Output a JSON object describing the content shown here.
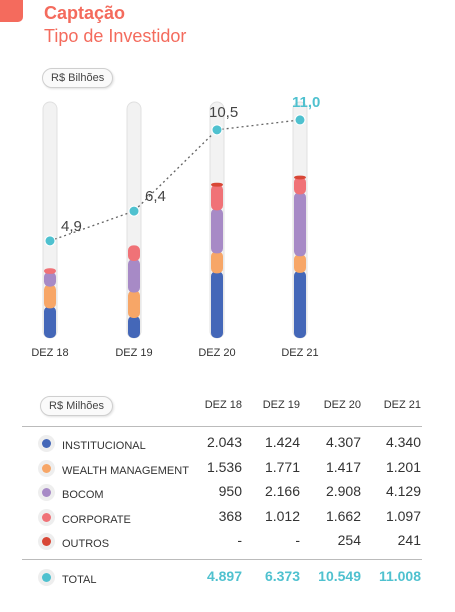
{
  "header": {
    "title": "Captação",
    "subtitle": "Tipo de Investidor"
  },
  "chart_unit_label": "R$ Bilhões",
  "table_unit_label": "R$ Milhões",
  "colors": {
    "institucional": "#4467b8",
    "wealth": "#f7a667",
    "bocom": "#a78ac6",
    "corporate": "#f07277",
    "outros": "#d84736",
    "total": "#4fc1cf",
    "title": "#f46b5d"
  },
  "chart_data": {
    "type": "bar",
    "stacked": true,
    "categories": [
      "DEZ 18",
      "DEZ 19",
      "DEZ 20",
      "DEZ 21"
    ],
    "unit": "R$ Bilhões",
    "series": [
      {
        "name": "INSTITUCIONAL",
        "values": [
          2.043,
          1.424,
          4.307,
          4.34
        ]
      },
      {
        "name": "WEALTH MANAGEMENT",
        "values": [
          1.536,
          1.771,
          1.417,
          1.201
        ]
      },
      {
        "name": "BOCOM",
        "values": [
          0.95,
          2.166,
          2.908,
          4.129
        ]
      },
      {
        "name": "CORPORATE",
        "values": [
          0.368,
          1.012,
          1.662,
          1.097
        ]
      },
      {
        "name": "OUTROS",
        "values": [
          0,
          0,
          0.254,
          0.241
        ]
      }
    ],
    "total_line": {
      "name": "TOTAL",
      "values": [
        4.9,
        6.4,
        10.5,
        11.0
      ],
      "labels": [
        "4,9",
        "6,4",
        "10,5",
        "11,0"
      ]
    },
    "ylim": [
      0,
      11.5
    ],
    "grid": false,
    "legend": "table-below"
  },
  "table": {
    "columns": [
      "DEZ 18",
      "DEZ 19",
      "DEZ 20",
      "DEZ 21"
    ],
    "rows": [
      {
        "key": "institucional",
        "label": "INSTITUCIONAL",
        "values": [
          "2.043",
          "1.424",
          "4.307",
          "4.340"
        ]
      },
      {
        "key": "wealth",
        "label": "WEALTH MANAGEMENT",
        "values": [
          "1.536",
          "1.771",
          "1.417",
          "1.201"
        ]
      },
      {
        "key": "bocom",
        "label": "BOCOM",
        "values": [
          "950",
          "2.166",
          "2.908",
          "4.129"
        ]
      },
      {
        "key": "corporate",
        "label": "CORPORATE",
        "values": [
          "368",
          "1.012",
          "1.662",
          "1.097"
        ]
      },
      {
        "key": "outros",
        "label": "OUTROS",
        "values": [
          "-",
          "-",
          "254",
          "241"
        ]
      }
    ],
    "total": {
      "label": "TOTAL",
      "values": [
        "4.897",
        "6.373",
        "10.549",
        "11.008"
      ]
    }
  }
}
